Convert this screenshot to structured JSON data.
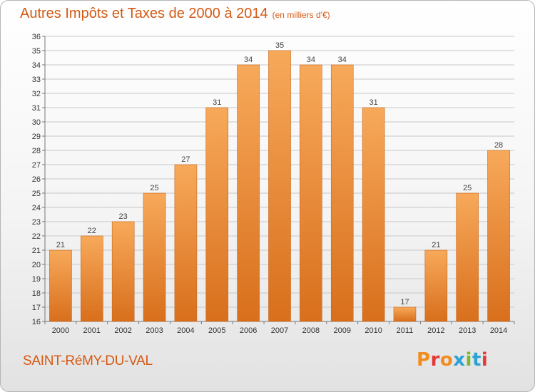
{
  "header": {
    "title": "Autres Impôts et Taxes de 2000 à 2014",
    "unit": "(en milliers d'€)"
  },
  "footer": {
    "town": "SAINT-RéMY-DU-VAL",
    "logo_letters": [
      "P",
      "r",
      "o",
      "x",
      "i",
      "t",
      "i"
    ],
    "logo_colors": [
      "#f28c1e",
      "#e23a36",
      "#f28c1e",
      "#2aa2d8",
      "#7ab929",
      "#2aa2d8",
      "#e23a36"
    ]
  },
  "colors": {
    "bar_light": "#f7a95a",
    "bar_dark": "#d86f1c",
    "grid": "#c8c8c8",
    "title": "#d45a14"
  },
  "chart_data": {
    "type": "bar",
    "title": "Autres Impôts et Taxes de 2000 à 2014",
    "subtitle": "(en milliers d'€)",
    "xlabel": "",
    "ylabel": "",
    "categories": [
      "2000",
      "2001",
      "2002",
      "2003",
      "2004",
      "2005",
      "2006",
      "2007",
      "2008",
      "2009",
      "2010",
      "2011",
      "2012",
      "2013",
      "2014"
    ],
    "values": [
      21,
      22,
      23,
      25,
      27,
      31,
      34,
      35,
      34,
      34,
      31,
      17,
      21,
      25,
      28
    ],
    "ylim": [
      16,
      36
    ],
    "yticks": [
      16,
      17,
      18,
      19,
      20,
      21,
      22,
      23,
      24,
      25,
      26,
      27,
      28,
      29,
      30,
      31,
      32,
      33,
      34,
      35,
      36
    ],
    "grid": true,
    "legend": "none"
  }
}
